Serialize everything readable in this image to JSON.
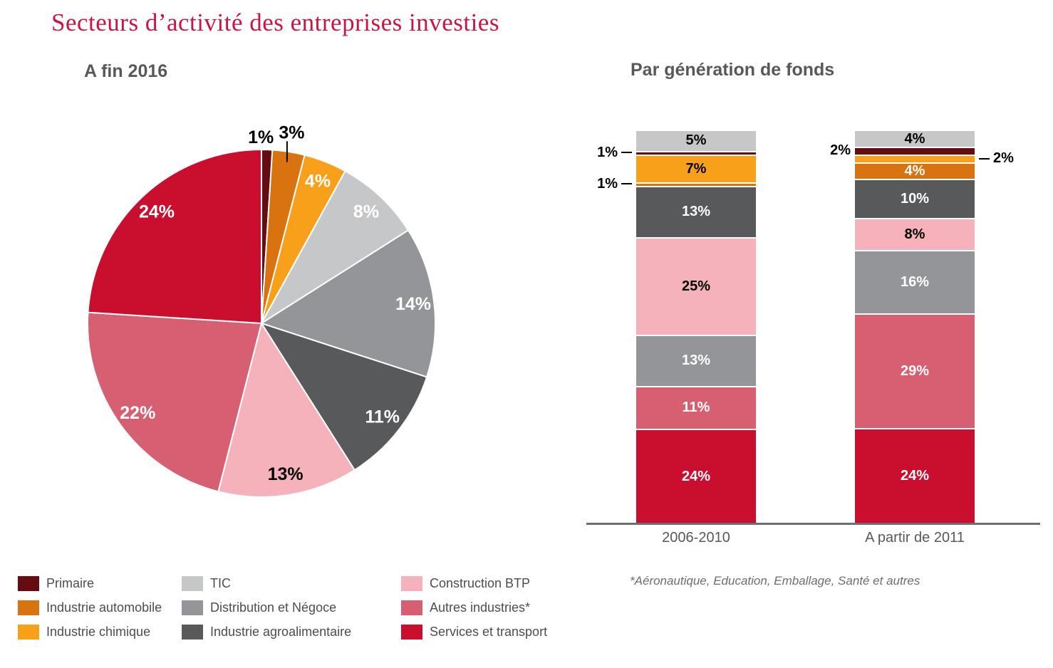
{
  "title": "Secteurs d’activité des entreprises investies",
  "pie": {
    "heading": "A fin 2016"
  },
  "bars": {
    "heading": "Par génération de fonds",
    "footnote": "*Aéronautique, Education, Emballage, Santé et autres"
  },
  "legend": {
    "columns": [
      {
        "items": [
          {
            "label": "Primaire",
            "color": "#660b10"
          },
          {
            "label": "Industrie automobile",
            "color": "#d8730f"
          },
          {
            "label": "Industrie chimique",
            "color": "#f9a01b"
          }
        ]
      },
      {
        "items": [
          {
            "label": "TIC",
            "color": "#c6c7c8"
          },
          {
            "label": "Distribution et Négoce",
            "color": "#939598"
          },
          {
            "label": "Industrie agroalimentaire",
            "color": "#58595b"
          }
        ]
      },
      {
        "items": [
          {
            "label": "Construction BTP",
            "color": "#f5b2ba"
          },
          {
            "label": "Autres industries*",
            "color": "#d75f72"
          },
          {
            "label": "Services et transport",
            "color": "#c90e2e"
          }
        ]
      }
    ]
  },
  "chart_data": [
    {
      "type": "pie",
      "title": "A fin 2016",
      "unit": "percent",
      "start_angle": "12-oclock",
      "direction": "clockwise",
      "slices": [
        {
          "label": "Primaire",
          "value": 1,
          "text": "1%",
          "color": "#660b10",
          "label_placement": "outside",
          "label_color": "#000000"
        },
        {
          "label": "Industrie automobile",
          "value": 3,
          "text": "3%",
          "color": "#d8730f",
          "label_placement": "outside-leader",
          "label_color": "#000000"
        },
        {
          "label": "Industrie chimique",
          "value": 4,
          "text": "4%",
          "color": "#f9a01b",
          "label_placement": "inside",
          "label_color": "#ffffff"
        },
        {
          "label": "TIC",
          "value": 8,
          "text": "8%",
          "color": "#c6c7c8",
          "label_placement": "inside",
          "label_color": "#ffffff"
        },
        {
          "label": "Distribution et Négoce",
          "value": 14,
          "text": "14%",
          "color": "#939598",
          "label_placement": "inside",
          "label_color": "#ffffff"
        },
        {
          "label": "Industrie agroalimentaire",
          "value": 11,
          "text": "11%",
          "color": "#58595b",
          "label_placement": "inside",
          "label_color": "#ffffff"
        },
        {
          "label": "Construction BTP",
          "value": 13,
          "text": "13%",
          "color": "#f5b2ba",
          "label_placement": "inside",
          "label_color": "#000000"
        },
        {
          "label": "Autres industries*",
          "value": 22,
          "text": "22%",
          "color": "#d75f72",
          "label_placement": "inside",
          "label_color": "#ffffff"
        },
        {
          "label": "Services et transport",
          "value": 24,
          "text": "24%",
          "color": "#c90e2e",
          "label_placement": "inside",
          "label_color": "#ffffff"
        }
      ]
    },
    {
      "type": "bar",
      "stacked": true,
      "title": "Par génération de fonds",
      "unit": "percent",
      "categories": [
        "2006-2010",
        "A partir de 2011"
      ],
      "stack_order": "top-to-bottom",
      "series": [
        {
          "name": "TIC",
          "color": "#c6c7c8",
          "values": [
            5,
            4
          ],
          "texts": [
            "5%",
            "4%"
          ],
          "label_color": "#000000",
          "placements": [
            "inside",
            "inside"
          ]
        },
        {
          "name": "Primaire",
          "color": "#660b10",
          "values": [
            1,
            2
          ],
          "texts": [
            "1%",
            "2%"
          ],
          "label_color": "#000000",
          "placements": [
            "left-dash",
            "left"
          ]
        },
        {
          "name": "Industrie chimique",
          "color": "#f9a01b",
          "values": [
            7,
            2
          ],
          "texts": [
            "7%",
            "2%"
          ],
          "label_color": "#000000",
          "placements": [
            "inside",
            "right-dash"
          ]
        },
        {
          "name": "Industrie automobile",
          "color": "#d8730f",
          "values": [
            1,
            4
          ],
          "texts": [
            "1%",
            "4%"
          ],
          "label_color": "#ffffff",
          "placements": [
            "left-dash",
            "inside"
          ]
        },
        {
          "name": "Industrie agroalimentaire",
          "color": "#58595b",
          "values": [
            13,
            10
          ],
          "texts": [
            "13%",
            "10%"
          ],
          "label_color": "#ffffff",
          "placements": [
            "inside",
            "inside"
          ]
        },
        {
          "name": "Construction BTP",
          "color": "#f5b2ba",
          "values": [
            25,
            8
          ],
          "texts": [
            "25%",
            "8%"
          ],
          "label_color": "#000000",
          "placements": [
            "inside",
            "inside"
          ]
        },
        {
          "name": "Distribution et Négoce",
          "color": "#939598",
          "values": [
            13,
            16
          ],
          "texts": [
            "13%",
            "16%"
          ],
          "label_color": "#ffffff",
          "placements": [
            "inside",
            "inside"
          ]
        },
        {
          "name": "Autres industries*",
          "color": "#d75f72",
          "values": [
            11,
            29
          ],
          "texts": [
            "11%",
            "29%"
          ],
          "label_color": "#ffffff",
          "placements": [
            "inside",
            "inside"
          ]
        },
        {
          "name": "Services et transport",
          "color": "#c90e2e",
          "values": [
            24,
            24
          ],
          "texts": [
            "24%",
            "24%"
          ],
          "label_color": "#ffffff",
          "placements": [
            "inside",
            "inside"
          ]
        }
      ],
      "footnote": "*Aéronautique, Education, Emballage, Santé et autres"
    }
  ]
}
